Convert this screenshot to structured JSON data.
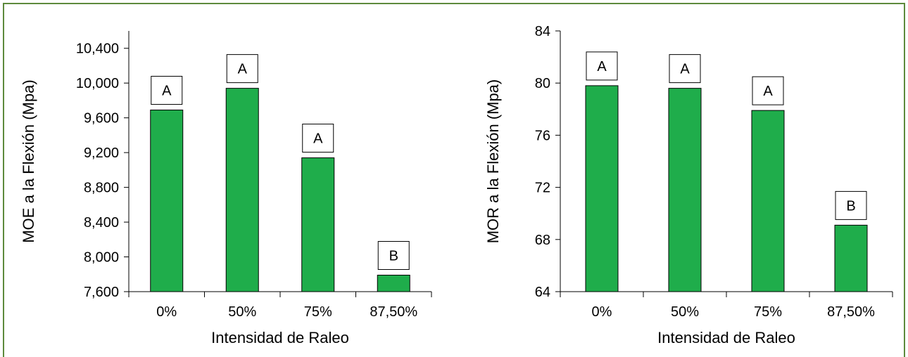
{
  "colors": {
    "bar": "#1fad4b",
    "frame": "#5d8a3c",
    "axis": "#000000"
  },
  "chart_data": [
    {
      "type": "bar",
      "xlabel": "Intensidad de Raleo",
      "ylabel": "MOE a la Flexión (Mpa)",
      "categories": [
        "0%",
        "50%",
        "75%",
        "87,50%"
      ],
      "values": [
        9690,
        9940,
        9140,
        7790
      ],
      "letters": [
        "A",
        "A",
        "A",
        "B"
      ],
      "ylim": [
        7600,
        10600
      ],
      "yticks": [
        7600,
        8000,
        8400,
        8800,
        9200,
        9600,
        10000,
        10400
      ],
      "ytick_labels": [
        "7,600",
        "8,000",
        "8,400",
        "8,800",
        "9,200",
        "9,600",
        "10,000",
        "10,400"
      ],
      "grid": false
    },
    {
      "type": "bar",
      "xlabel": "Intensidad de Raleo",
      "ylabel": "MOR a la Flexión (Mpa)",
      "categories": [
        "0%",
        "50%",
        "75%",
        "87,50%"
      ],
      "values": [
        79.8,
        79.6,
        77.9,
        69.1
      ],
      "letters": [
        "A",
        "A",
        "A",
        "B"
      ],
      "ylim": [
        64,
        84
      ],
      "yticks": [
        64,
        68,
        72,
        76,
        80,
        84
      ],
      "ytick_labels": [
        "64",
        "68",
        "72",
        "76",
        "80",
        "84"
      ],
      "grid": false
    }
  ]
}
